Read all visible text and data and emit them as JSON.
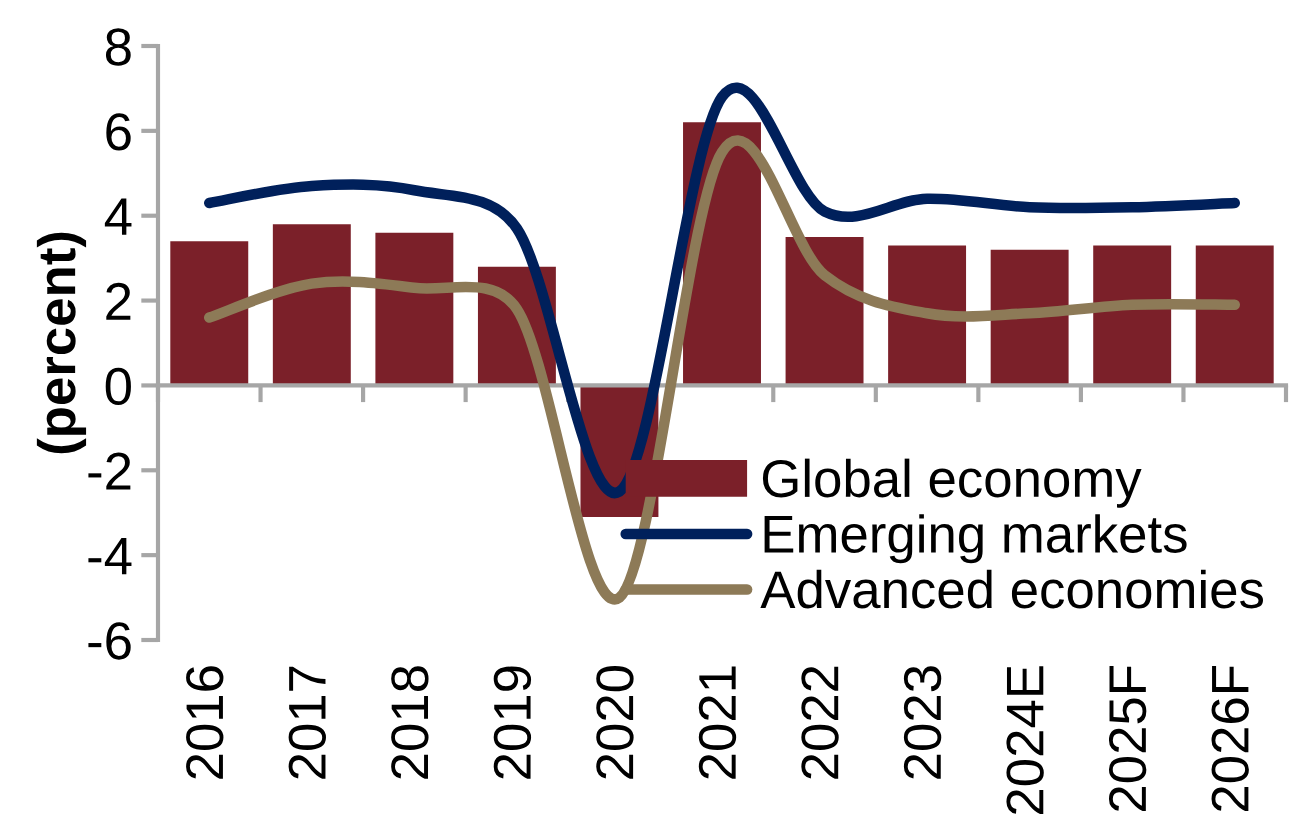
{
  "chart_data": {
    "type": "bar",
    "ylabel": "(percent)",
    "categories": [
      "2016",
      "2017",
      "2018",
      "2019",
      "2020",
      "2021",
      "2022",
      "2023",
      "2024E",
      "2025F",
      "2026F"
    ],
    "series": [
      {
        "name": "Global economy",
        "color": "#7b2029",
        "values": [
          3.4,
          3.8,
          3.6,
          2.8,
          -3.1,
          6.2,
          3.5,
          3.3,
          3.2,
          3.3,
          3.3
        ]
      },
      {
        "name": "Emerging markets",
        "type": "line",
        "color": "#00205b",
        "values": [
          4.3,
          4.7,
          4.6,
          3.7,
          -2.5,
          6.8,
          4.1,
          4.4,
          4.2,
          4.2,
          4.3
        ]
      },
      {
        "name": "Advanced economies",
        "type": "line",
        "color": "#8d7a57",
        "values": [
          1.6,
          2.4,
          2.3,
          1.8,
          -5.0,
          5.5,
          2.6,
          1.7,
          1.7,
          1.9,
          1.9
        ]
      }
    ],
    "ylim": [
      -6,
      8
    ],
    "yticks": [
      -6,
      -4,
      -2,
      0,
      2,
      4,
      6,
      8
    ],
    "ref_lines": [
      {
        "axis": "y",
        "value": 0,
        "color": "#a6a6a6"
      }
    ],
    "legend": "bottom right",
    "line_style": "solid",
    "grid": false
  }
}
